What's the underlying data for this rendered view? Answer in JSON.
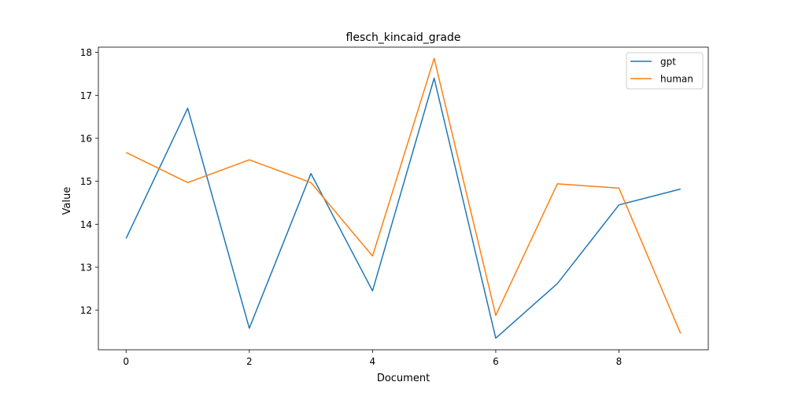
{
  "chart_data": {
    "type": "line",
    "title": "flesch_kincaid_grade",
    "xlabel": "Document",
    "ylabel": "Value",
    "x": [
      0,
      1,
      2,
      3,
      4,
      5,
      6,
      7,
      8,
      9
    ],
    "xlim": [
      -0.45,
      9.45
    ],
    "ylim": [
      11.08,
      18.12
    ],
    "xticks": [
      0,
      2,
      4,
      6,
      8
    ],
    "yticks": [
      12,
      13,
      14,
      15,
      16,
      17,
      18
    ],
    "grid": false,
    "legend_position": "top-right",
    "series": [
      {
        "name": "gpt",
        "color": "#1f77b4",
        "values": [
          13.67,
          16.7,
          11.58,
          15.18,
          12.45,
          17.4,
          11.35,
          12.62,
          14.45,
          14.82
        ]
      },
      {
        "name": "human",
        "color": "#ff7f0e",
        "values": [
          15.67,
          14.97,
          15.5,
          14.97,
          13.26,
          17.86,
          11.88,
          14.94,
          14.84,
          11.46
        ]
      }
    ]
  }
}
